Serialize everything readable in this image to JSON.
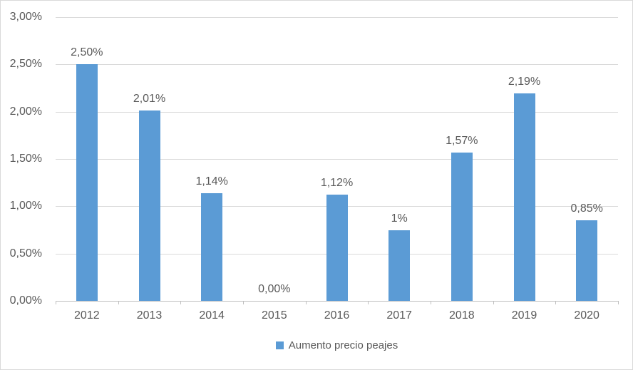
{
  "chart_data": {
    "type": "bar",
    "title": "",
    "xlabel": "",
    "ylabel": "",
    "categories": [
      "2012",
      "2013",
      "2014",
      "2015",
      "2016",
      "2017",
      "2018",
      "2019",
      "2020"
    ],
    "values": [
      2.5,
      2.01,
      1.14,
      0.0,
      1.12,
      0.75,
      1.57,
      2.19,
      0.85
    ],
    "data_labels": [
      "2,50%",
      "2,01%",
      "1,14%",
      "0,00%",
      "1,12%",
      "1%",
      "1,57%",
      "2,19%",
      "0,85%"
    ],
    "legend": "Aumento precio peajes",
    "legend_position": "bottom",
    "ylim": [
      0,
      3
    ],
    "ytick_step": 0.5,
    "ytick_labels": [
      "0,00%",
      "0,50%",
      "1,00%",
      "1,50%",
      "2,00%",
      "2,50%",
      "3,00%"
    ],
    "grid": true,
    "colors": {
      "bar": "#5B9BD5",
      "gridline": "#D9D9D9",
      "axis_line": "#BFBFBF",
      "text": "#595959",
      "border": "#D9D9D9",
      "background": "#FFFFFF"
    }
  }
}
